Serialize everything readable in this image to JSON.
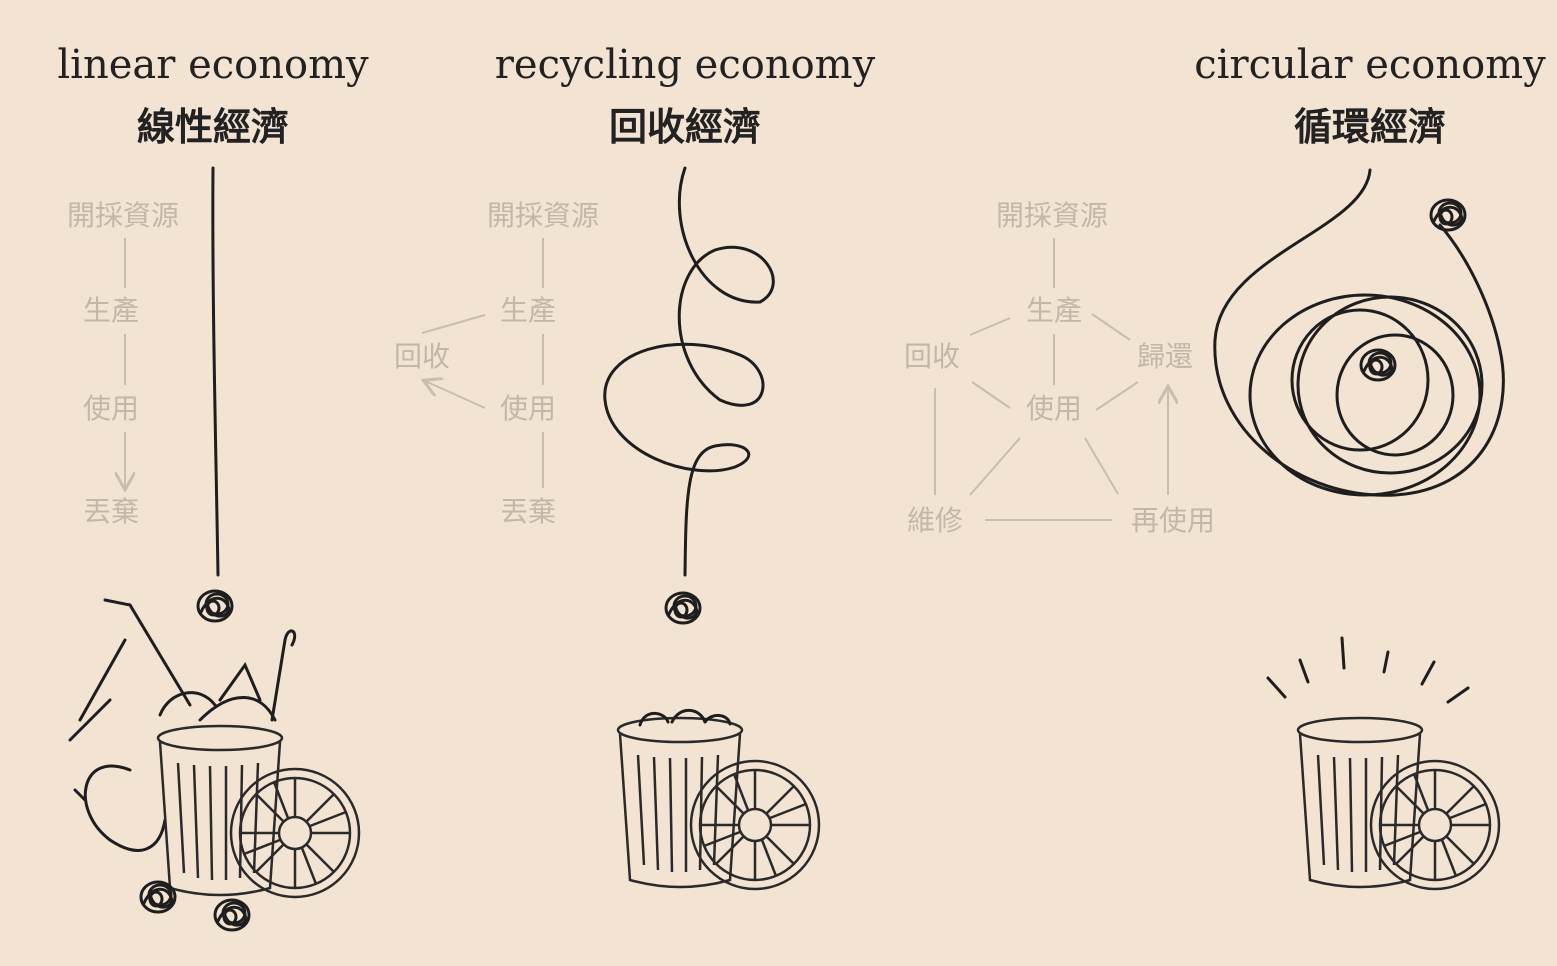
{
  "panels": [
    {
      "title": "linear economy",
      "subtitle": "線性經濟",
      "nodes": [
        "開採資源",
        "生產",
        "使用",
        "丟棄"
      ]
    },
    {
      "title": "recycling economy",
      "subtitle": "回收經濟",
      "nodes": [
        "開採資源",
        "生產",
        "使用",
        "丟棄",
        "回收"
      ]
    },
    {
      "title": "circular economy",
      "subtitle": "循環經濟",
      "nodes": [
        "開採資源",
        "生產",
        "使用",
        "回收",
        "歸還",
        "維修",
        "再使用"
      ]
    }
  ]
}
